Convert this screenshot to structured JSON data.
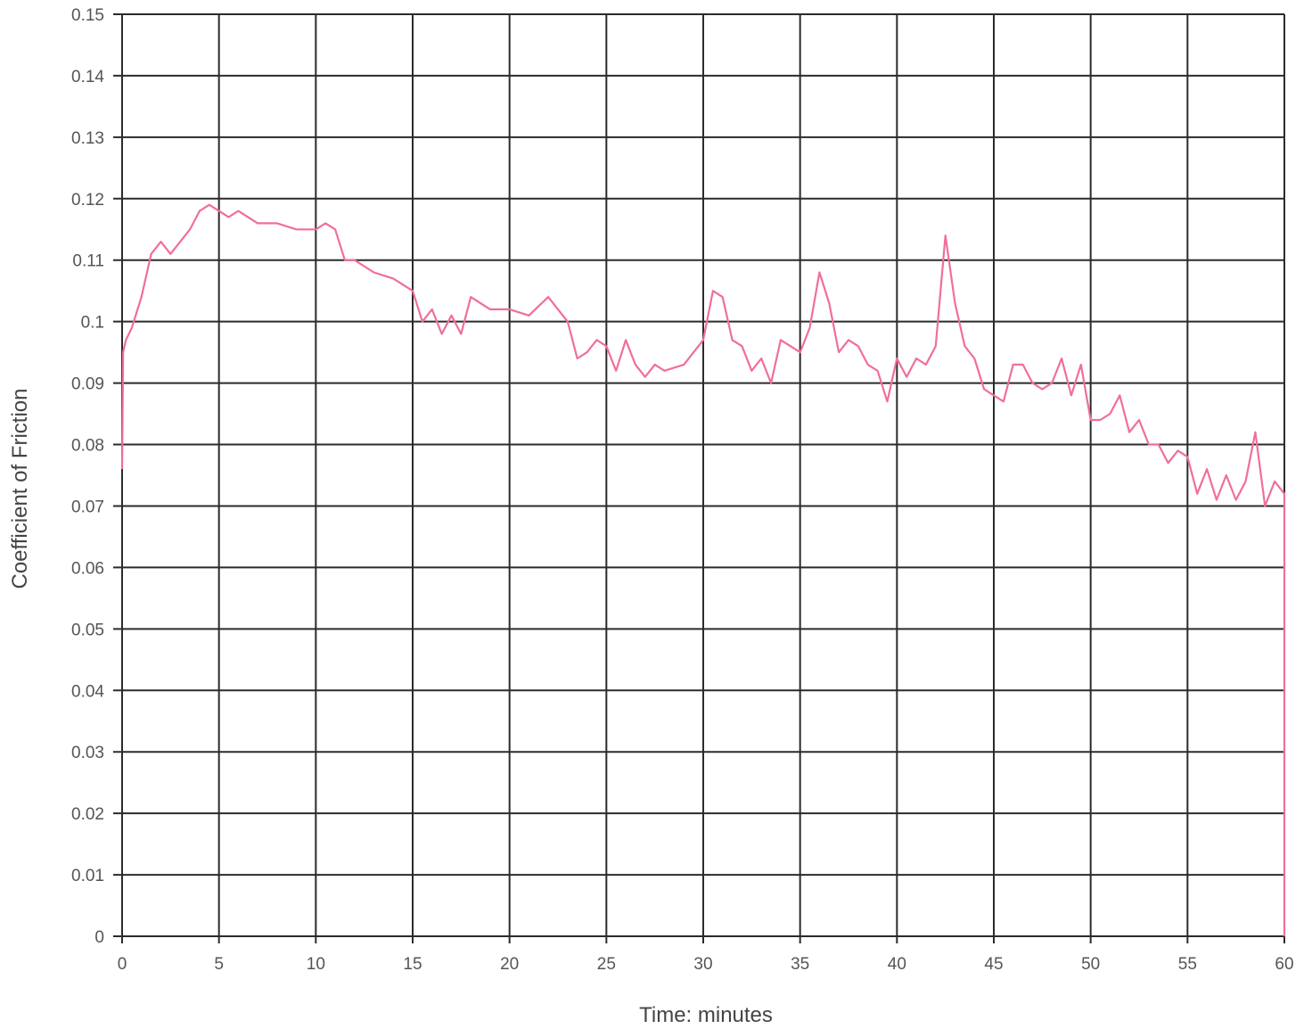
{
  "chart_data": {
    "type": "line",
    "xlabel": "Time: minutes",
    "ylabel": "Coefficient of Friction",
    "xlim": [
      0,
      60
    ],
    "ylim": [
      0,
      0.15
    ],
    "x_ticks": [
      "0",
      "5",
      "10",
      "15",
      "20",
      "25",
      "30",
      "35",
      "40",
      "45",
      "50",
      "55",
      "60"
    ],
    "y_ticks": [
      "0",
      "0.01",
      "0.02",
      "0.03",
      "0.04",
      "0.05",
      "0.06",
      "0.07",
      "0.08",
      "0.09",
      "0.1",
      "0.11",
      "0.12",
      "0.13",
      "0.14",
      "0.15"
    ],
    "grid": true,
    "series_color": "#f06e9c",
    "series": [
      {
        "x": [
          0,
          0.05,
          0.2,
          0.5,
          1.0,
          1.5,
          2.0,
          2.5,
          3.0,
          3.5,
          4.0,
          4.5,
          5.0,
          5.5,
          6.0,
          7.0,
          8.0,
          9.0,
          10.0,
          10.5,
          11.0,
          11.5,
          12.0,
          13.0,
          14.0,
          15.0,
          15.5,
          16.0,
          16.5,
          17.0,
          17.5,
          18.0,
          19.0,
          20.0,
          21.0,
          22.0,
          22.5,
          23.0,
          23.5,
          24.0,
          24.5,
          25.0,
          25.5,
          26.0,
          26.5,
          27.0,
          27.5,
          28.0,
          29.0,
          30.0,
          30.5,
          31.0,
          31.5,
          32.0,
          32.5,
          33.0,
          33.5,
          34.0,
          34.5,
          35.0,
          35.5,
          36.0,
          36.5,
          37.0,
          37.5,
          38.0,
          38.5,
          39.0,
          39.5,
          40.0,
          40.5,
          41.0,
          41.5,
          42.0,
          42.5,
          43.0,
          43.5,
          44.0,
          44.5,
          45.0,
          45.5,
          46.0,
          46.5,
          47.0,
          47.5,
          48.0,
          48.5,
          49.0,
          49.5,
          50.0,
          50.5,
          51.0,
          51.5,
          52.0,
          52.5,
          53.0,
          53.5,
          54.0,
          54.5,
          55.0,
          55.5,
          56.0,
          56.5,
          57.0,
          57.5,
          58.0,
          58.5,
          59.0,
          59.5,
          60.0,
          60.0
        ],
        "y": [
          0.076,
          0.095,
          0.097,
          0.099,
          0.104,
          0.111,
          0.113,
          0.111,
          0.113,
          0.115,
          0.118,
          0.119,
          0.118,
          0.117,
          0.118,
          0.116,
          0.116,
          0.115,
          0.115,
          0.116,
          0.115,
          0.11,
          0.11,
          0.108,
          0.107,
          0.105,
          0.1,
          0.102,
          0.098,
          0.101,
          0.098,
          0.104,
          0.102,
          0.102,
          0.101,
          0.104,
          0.102,
          0.1,
          0.094,
          0.095,
          0.097,
          0.096,
          0.092,
          0.097,
          0.093,
          0.091,
          0.093,
          0.092,
          0.093,
          0.097,
          0.105,
          0.104,
          0.097,
          0.096,
          0.092,
          0.094,
          0.09,
          0.097,
          0.096,
          0.095,
          0.099,
          0.108,
          0.103,
          0.095,
          0.097,
          0.096,
          0.093,
          0.092,
          0.087,
          0.094,
          0.091,
          0.094,
          0.093,
          0.096,
          0.114,
          0.103,
          0.096,
          0.094,
          0.089,
          0.088,
          0.087,
          0.093,
          0.093,
          0.09,
          0.089,
          0.09,
          0.094,
          0.088,
          0.093,
          0.084,
          0.084,
          0.085,
          0.088,
          0.082,
          0.084,
          0.08,
          0.08,
          0.077,
          0.079,
          0.078,
          0.072,
          0.076,
          0.071,
          0.075,
          0.071,
          0.074,
          0.082,
          0.07,
          0.074,
          0.072,
          0.0
        ]
      }
    ]
  }
}
